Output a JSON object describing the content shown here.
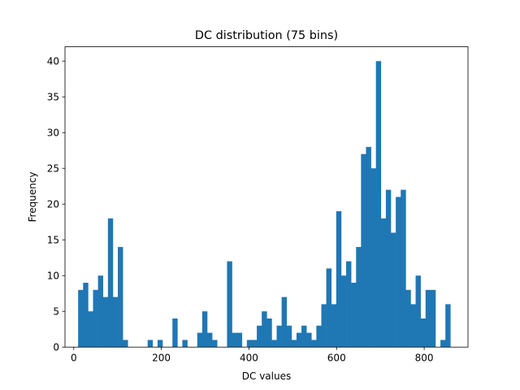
{
  "chart_data": {
    "type": "bar",
    "title": "DC distribution (75 bins)",
    "xlabel": "DC values",
    "ylabel": "Frequency",
    "bar_color": "#1f77b4",
    "xlim": [
      -20,
      900
    ],
    "ylim": [
      0,
      42
    ],
    "x_ticks": [
      0,
      200,
      400,
      600,
      800
    ],
    "y_ticks": [
      0,
      5,
      10,
      15,
      20,
      25,
      30,
      35,
      40
    ],
    "bin_start": 10,
    "bin_width": 11.33,
    "values": [
      8,
      9,
      5,
      8,
      10,
      7,
      18,
      7,
      14,
      1,
      0,
      0,
      0,
      0,
      1,
      0,
      1,
      0,
      0,
      4,
      0,
      1,
      0,
      0,
      2,
      5,
      2,
      1,
      0,
      0,
      12,
      2,
      2,
      0,
      1,
      1,
      3,
      5,
      4,
      1,
      3,
      7,
      3,
      1,
      2,
      3,
      2,
      1,
      3,
      6,
      11,
      6,
      19,
      10,
      12,
      9,
      14,
      27,
      28,
      25,
      40,
      18,
      22,
      16,
      21,
      22,
      8,
      6,
      10,
      4,
      8,
      8,
      0,
      1,
      6
    ],
    "grid": false,
    "legend": "none"
  }
}
